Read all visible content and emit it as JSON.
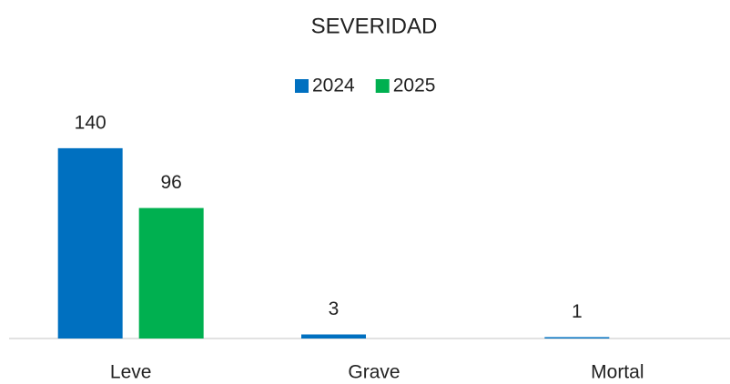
{
  "chart_data": {
    "type": "bar",
    "title": "SEVERIDAD",
    "categories": [
      "Leve",
      "Grave",
      "Mortal"
    ],
    "series": [
      {
        "name": "2024",
        "color": "#0070c0",
        "values": [
          140,
          3,
          1
        ]
      },
      {
        "name": "2025",
        "color": "#00b050",
        "values": [
          96,
          null,
          null
        ]
      }
    ],
    "ylim": [
      0,
      160
    ],
    "legend": "top"
  }
}
